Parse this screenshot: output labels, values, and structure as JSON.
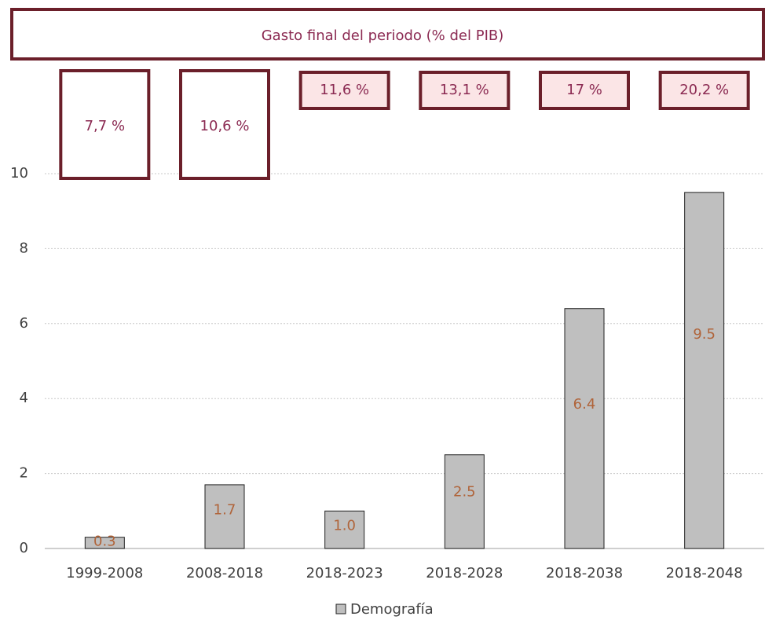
{
  "chart_data": {
    "type": "bar",
    "title": "Gasto final del periodo (% del PIB)",
    "categories": [
      "1999-2008",
      "2008-2018",
      "2018-2023",
      "2018-2028",
      "2018-2038",
      "2018-2048"
    ],
    "series": [
      {
        "name": "Demografía",
        "color": "#bfbfbf",
        "values": [
          0.3,
          1.7,
          1.0,
          2.5,
          6.4,
          9.5
        ],
        "value_labels": [
          "0.3",
          "1.7",
          "1.0",
          "2.5",
          "6.4",
          "9.5"
        ]
      }
    ],
    "annotations": [
      "7,7 %",
      "10,6 %",
      "11,6 %",
      "13,1 %",
      "17 %",
      "20,2 %"
    ],
    "ylim": [
      0,
      10
    ],
    "yticks": [
      0,
      2,
      4,
      6,
      8,
      10
    ],
    "grid": true,
    "legend": "bottom"
  }
}
